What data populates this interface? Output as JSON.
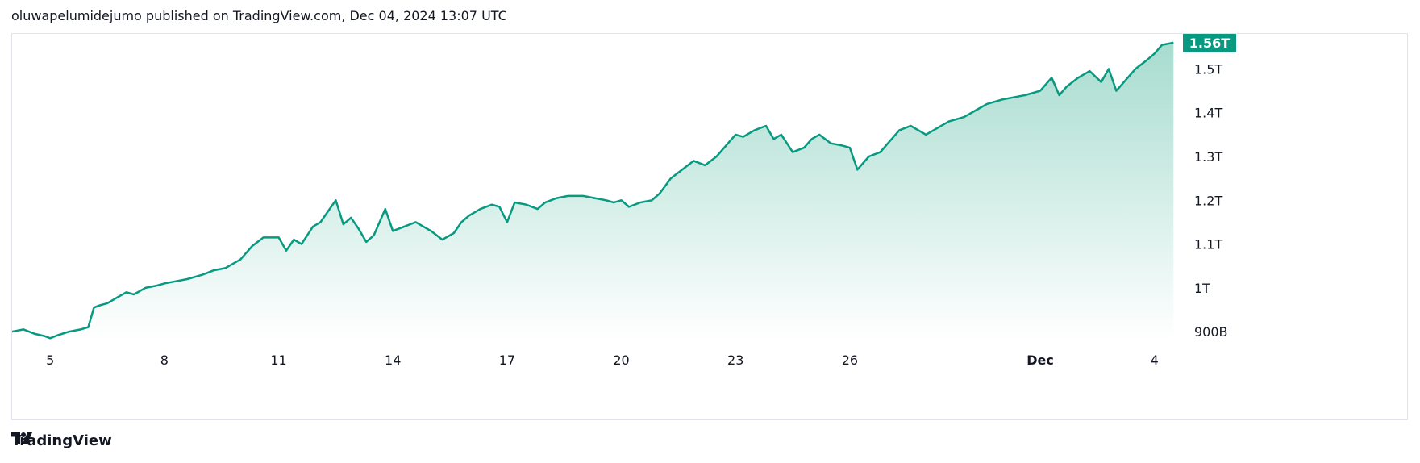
{
  "header": {
    "text": "oluwapelumidejumo published on TradingView.com, Dec 04, 2024 13:07 UTC"
  },
  "footer": {
    "brand": "TradingView"
  },
  "colors": {
    "line": "#089981",
    "fill_top": "#a7dccf",
    "fill_bottom": "#ffffff",
    "label_bg": "#089981"
  },
  "chart_data": {
    "type": "area",
    "y_ticks": [
      "1.5T",
      "1.4T",
      "1.3T",
      "1.2T",
      "1.1T",
      "1T",
      "900B"
    ],
    "y_tick_values": [
      1.5,
      1.4,
      1.3,
      1.2,
      1.1,
      1.0,
      0.9
    ],
    "x_ticks": [
      "5",
      "8",
      "11",
      "14",
      "17",
      "20",
      "23",
      "26",
      "Dec",
      "4"
    ],
    "x_tick_values": [
      5,
      8,
      11,
      14,
      17,
      20,
      23,
      26,
      31,
      34
    ],
    "x_tick_bold": [
      "Dec"
    ],
    "last_value_label": "1.56T",
    "last_value": 1.56,
    "ylim": [
      0.88,
      1.58
    ],
    "xlim": [
      4.0,
      34.6
    ],
    "x": [
      4.0,
      4.3,
      4.6,
      4.85,
      5.0,
      5.2,
      5.5,
      5.8,
      6.0,
      6.15,
      6.3,
      6.5,
      6.8,
      7.0,
      7.2,
      7.5,
      7.8,
      8.0,
      8.3,
      8.6,
      9.0,
      9.3,
      9.6,
      10.0,
      10.3,
      10.6,
      11.0,
      11.2,
      11.4,
      11.6,
      11.9,
      12.1,
      12.3,
      12.5,
      12.7,
      12.9,
      13.1,
      13.3,
      13.5,
      13.8,
      14.0,
      14.3,
      14.6,
      15.0,
      15.3,
      15.6,
      15.8,
      16.0,
      16.3,
      16.6,
      16.8,
      17.0,
      17.2,
      17.5,
      17.8,
      18.0,
      18.3,
      18.6,
      19.0,
      19.3,
      19.6,
      19.8,
      20.0,
      20.2,
      20.5,
      20.8,
      21.0,
      21.3,
      21.6,
      21.9,
      22.2,
      22.5,
      22.8,
      23.0,
      23.2,
      23.5,
      23.8,
      24.0,
      24.2,
      24.5,
      24.8,
      25.0,
      25.2,
      25.5,
      25.8,
      26.0,
      26.2,
      26.5,
      26.8,
      27.0,
      27.3,
      27.6,
      28.0,
      28.3,
      28.6,
      29.0,
      29.3,
      29.6,
      30.0,
      30.3,
      30.6,
      31.0,
      31.3,
      31.5,
      31.7,
      32.0,
      32.3,
      32.6,
      32.8,
      33.0,
      33.2,
      33.5,
      33.8,
      34.0,
      34.2,
      34.5
    ],
    "y": [
      0.9,
      0.905,
      0.895,
      0.89,
      0.885,
      0.892,
      0.9,
      0.905,
      0.91,
      0.955,
      0.96,
      0.965,
      0.98,
      0.99,
      0.985,
      1.0,
      1.005,
      1.01,
      1.015,
      1.02,
      1.03,
      1.04,
      1.045,
      1.065,
      1.095,
      1.115,
      1.115,
      1.085,
      1.11,
      1.1,
      1.14,
      1.15,
      1.175,
      1.2,
      1.145,
      1.16,
      1.135,
      1.105,
      1.12,
      1.18,
      1.13,
      1.14,
      1.15,
      1.13,
      1.11,
      1.125,
      1.15,
      1.165,
      1.18,
      1.19,
      1.185,
      1.15,
      1.195,
      1.19,
      1.18,
      1.195,
      1.205,
      1.21,
      1.21,
      1.205,
      1.2,
      1.195,
      1.2,
      1.185,
      1.195,
      1.2,
      1.215,
      1.25,
      1.27,
      1.29,
      1.28,
      1.3,
      1.33,
      1.35,
      1.345,
      1.36,
      1.37,
      1.34,
      1.35,
      1.31,
      1.32,
      1.34,
      1.35,
      1.33,
      1.325,
      1.32,
      1.27,
      1.3,
      1.31,
      1.33,
      1.36,
      1.37,
      1.35,
      1.365,
      1.38,
      1.39,
      1.405,
      1.42,
      1.43,
      1.435,
      1.44,
      1.45,
      1.48,
      1.44,
      1.46,
      1.48,
      1.495,
      1.47,
      1.5,
      1.45,
      1.47,
      1.5,
      1.52,
      1.535,
      1.555,
      1.56
    ]
  }
}
